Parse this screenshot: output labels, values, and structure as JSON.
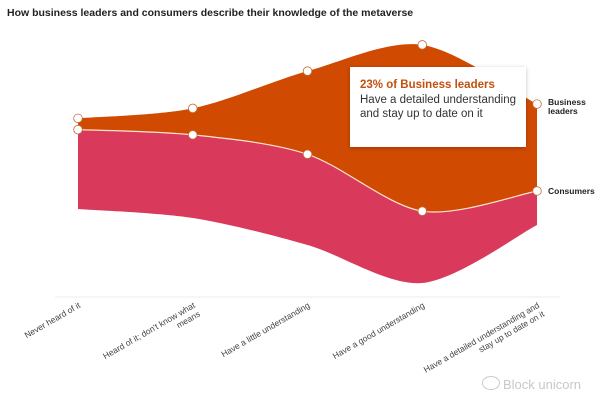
{
  "chart_data": {
    "type": "area",
    "subtype": "streamgraph",
    "title": "How business leaders and consumers describe their knowledge of the metaverse",
    "xlabel": "",
    "ylabel": "",
    "categories": [
      "Never heard of it",
      "Heard of it; don't know what means",
      "Have a little understanding",
      "Have a good understanding",
      "Have a detailed understanding and stay up to date on it"
    ],
    "category_lines": [
      [
        "Never heard of it"
      ],
      [
        "Heard of it; don't know what",
        "means"
      ],
      [
        "Have a little understanding"
      ],
      [
        "Have a good understanding"
      ],
      [
        "Have a detailed understanding and",
        "stay up to date on it"
      ]
    ],
    "series": [
      {
        "name": "Consumers",
        "label_lines": [
          "Consumers"
        ],
        "color": "#d9395a",
        "values": [
          21,
          22,
          24,
          19,
          9
        ]
      },
      {
        "name": "Business leaders",
        "label_lines": [
          "Business",
          "leaders"
        ],
        "color": "#d04a02",
        "values": [
          3,
          7,
          22,
          44,
          23
        ]
      }
    ],
    "units": "%",
    "grid": false,
    "legend": "right (inline series labels)",
    "annotation": {
      "headline": "23% of Business leaders",
      "body": "Have a detailed understanding and stay up to date on it",
      "target_series": "Business leaders",
      "target_category": "Have a detailed understanding and stay up to date on it"
    }
  },
  "watermark": "Block unicorn"
}
